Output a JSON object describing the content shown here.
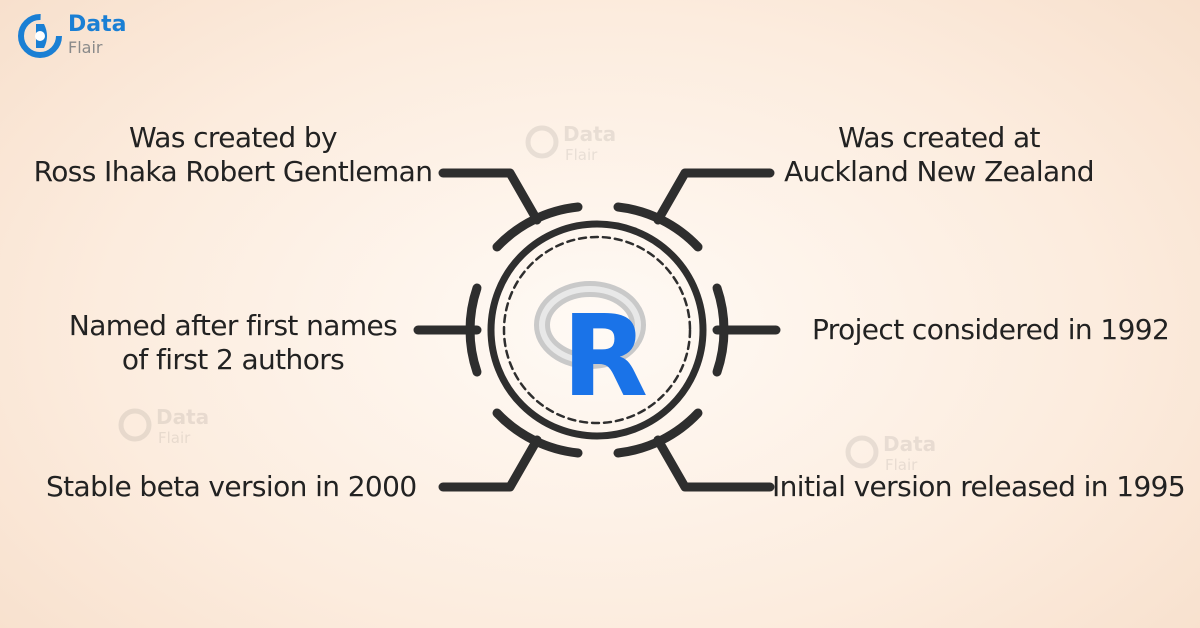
{
  "brand": {
    "logo_top": "Data",
    "logo_bottom": "Flair",
    "accent": "#1a7fd4"
  },
  "center": {
    "letter": "R",
    "letter_color": "#1a73e8"
  },
  "facts": {
    "top_left": [
      "Was created by",
      "Ross Ihaka Robert Gentleman"
    ],
    "top_right": [
      "Was created at",
      "Auckland New Zealand"
    ],
    "mid_left": [
      "Named after first names",
      "of first 2 authors"
    ],
    "mid_right": [
      "Project considered in 1992"
    ],
    "bottom_left": [
      "Stable beta version in 2000"
    ],
    "bottom_right": [
      "Initial version released in 1995"
    ]
  },
  "watermark": {
    "top": "Data",
    "bottom": "Flair"
  }
}
